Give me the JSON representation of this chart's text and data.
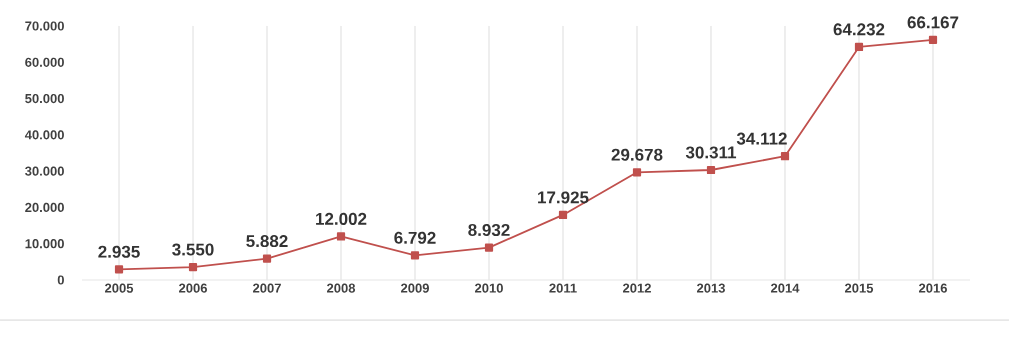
{
  "chart_data": {
    "type": "line",
    "categories": [
      "2005",
      "2006",
      "2007",
      "2008",
      "2009",
      "2010",
      "2011",
      "2012",
      "2013",
      "2014",
      "2015",
      "2016"
    ],
    "series": [
      {
        "color": "#c0504d",
        "values": [
          2935,
          3550,
          5882,
          12002,
          6792,
          8932,
          17925,
          29678,
          30311,
          34112,
          64232,
          66167
        ],
        "value_labels": [
          "2.935",
          "3.550",
          "5.882",
          "12.002",
          "6.792",
          "8.932",
          "17.925",
          "29.678",
          "30.311",
          "34.112",
          "64.232",
          "66.167"
        ]
      }
    ],
    "ylim": [
      0,
      70000
    ],
    "yticks": [
      0,
      {
        "value": 10000,
        "label": "10.000"
      },
      {
        "value": 20000,
        "label": "20.000"
      },
      {
        "value": 30000,
        "label": "30.000"
      },
      {
        "value": 40000,
        "label": "40.000"
      },
      {
        "value": 50000,
        "label": "50.000"
      },
      {
        "value": 60000,
        "label": "60.000"
      },
      {
        "value": 70000,
        "label": "70.000"
      }
    ],
    "grid": "x",
    "marker": "square",
    "line_style": "solid"
  }
}
